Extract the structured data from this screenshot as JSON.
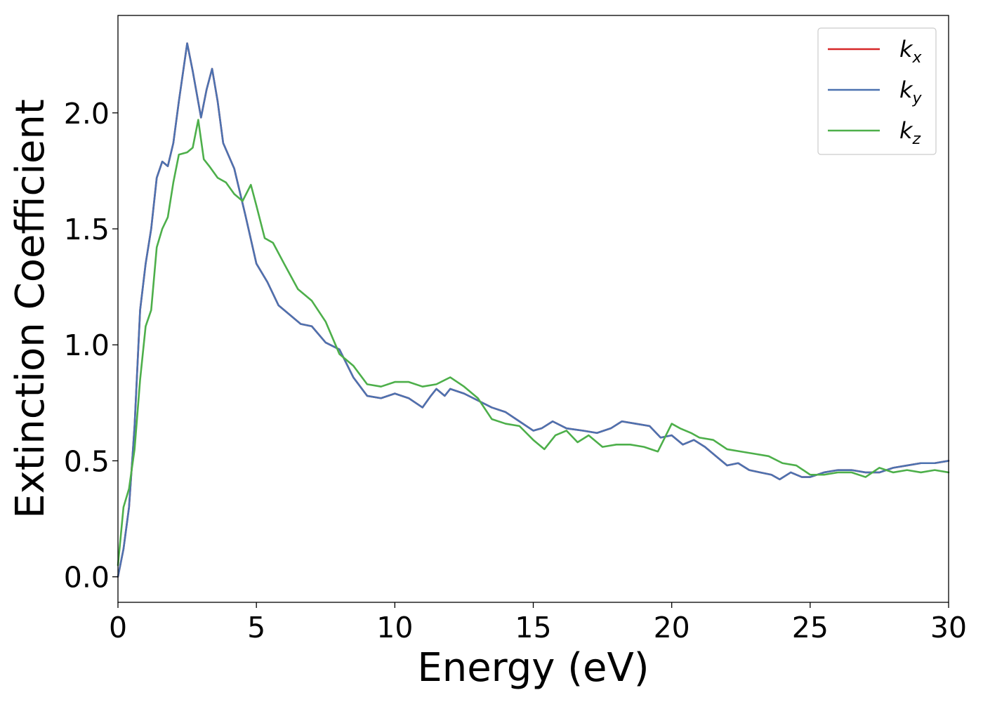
{
  "chart_data": {
    "type": "line",
    "xlabel": "Energy (eV)",
    "ylabel": "Extinction Coefficient",
    "xlim": [
      0,
      30
    ],
    "ylim": [
      -0.11,
      2.42
    ],
    "xticks": [
      "0",
      "5",
      "10",
      "15",
      "20",
      "25",
      "30"
    ],
    "yticks": [
      "0.0",
      "0.5",
      "1.0",
      "1.5",
      "2.0"
    ],
    "grid": false,
    "legend_position": "top-right",
    "series": [
      {
        "name": "kx",
        "symbol": "k",
        "subscript": "x",
        "color": "#d62728",
        "x": [
          0,
          0.2,
          0.4,
          0.6,
          0.8,
          1.0,
          1.2,
          1.4,
          1.6,
          1.8,
          2.0,
          2.2,
          2.5,
          2.7,
          3.0,
          3.2,
          3.4,
          3.6,
          3.8,
          4.2,
          4.6,
          5.0,
          5.4,
          5.8,
          6.2,
          6.6,
          7.0,
          7.5,
          8.0,
          8.5,
          9.0,
          9.5,
          10.0,
          10.5,
          11.0,
          11.3,
          11.5,
          11.8,
          12.0,
          12.5,
          13.0,
          13.5,
          14.0,
          14.5,
          15.0,
          15.3,
          15.7,
          16.2,
          16.8,
          17.3,
          17.8,
          18.2,
          18.7,
          19.2,
          19.6,
          20.0,
          20.4,
          20.8,
          21.2,
          21.6,
          22.0,
          22.4,
          22.8,
          23.2,
          23.6,
          23.9,
          24.3,
          24.7,
          25.0,
          25.5,
          26.0,
          26.5,
          27.0,
          27.5,
          28.0,
          28.5,
          29.0,
          29.5,
          30.0
        ],
        "y": [
          0.0,
          0.12,
          0.3,
          0.65,
          1.15,
          1.35,
          1.5,
          1.72,
          1.79,
          1.77,
          1.87,
          2.05,
          2.3,
          2.18,
          1.98,
          2.1,
          2.19,
          2.05,
          1.87,
          1.76,
          1.56,
          1.35,
          1.27,
          1.17,
          1.13,
          1.09,
          1.08,
          1.01,
          0.98,
          0.86,
          0.78,
          0.77,
          0.79,
          0.77,
          0.73,
          0.78,
          0.81,
          0.78,
          0.81,
          0.79,
          0.76,
          0.73,
          0.71,
          0.67,
          0.63,
          0.64,
          0.67,
          0.64,
          0.63,
          0.62,
          0.64,
          0.67,
          0.66,
          0.65,
          0.6,
          0.61,
          0.57,
          0.59,
          0.56,
          0.52,
          0.48,
          0.49,
          0.46,
          0.45,
          0.44,
          0.42,
          0.45,
          0.43,
          0.43,
          0.45,
          0.46,
          0.46,
          0.45,
          0.45,
          0.47,
          0.48,
          0.49,
          0.49,
          0.5
        ]
      },
      {
        "name": "ky",
        "symbol": "k",
        "subscript": "y",
        "color": "#4c72b0",
        "x": [
          0,
          0.2,
          0.4,
          0.6,
          0.8,
          1.0,
          1.2,
          1.4,
          1.6,
          1.8,
          2.0,
          2.2,
          2.5,
          2.7,
          3.0,
          3.2,
          3.4,
          3.6,
          3.8,
          4.2,
          4.6,
          5.0,
          5.4,
          5.8,
          6.2,
          6.6,
          7.0,
          7.5,
          8.0,
          8.5,
          9.0,
          9.5,
          10.0,
          10.5,
          11.0,
          11.3,
          11.5,
          11.8,
          12.0,
          12.5,
          13.0,
          13.5,
          14.0,
          14.5,
          15.0,
          15.3,
          15.7,
          16.2,
          16.8,
          17.3,
          17.8,
          18.2,
          18.7,
          19.2,
          19.6,
          20.0,
          20.4,
          20.8,
          21.2,
          21.6,
          22.0,
          22.4,
          22.8,
          23.2,
          23.6,
          23.9,
          24.3,
          24.7,
          25.0,
          25.5,
          26.0,
          26.5,
          27.0,
          27.5,
          28.0,
          28.5,
          29.0,
          29.5,
          30.0
        ],
        "y": [
          0.0,
          0.12,
          0.3,
          0.65,
          1.15,
          1.35,
          1.5,
          1.72,
          1.79,
          1.77,
          1.87,
          2.05,
          2.3,
          2.18,
          1.98,
          2.1,
          2.19,
          2.05,
          1.87,
          1.76,
          1.56,
          1.35,
          1.27,
          1.17,
          1.13,
          1.09,
          1.08,
          1.01,
          0.98,
          0.86,
          0.78,
          0.77,
          0.79,
          0.77,
          0.73,
          0.78,
          0.81,
          0.78,
          0.81,
          0.79,
          0.76,
          0.73,
          0.71,
          0.67,
          0.63,
          0.64,
          0.67,
          0.64,
          0.63,
          0.62,
          0.64,
          0.67,
          0.66,
          0.65,
          0.6,
          0.61,
          0.57,
          0.59,
          0.56,
          0.52,
          0.48,
          0.49,
          0.46,
          0.45,
          0.44,
          0.42,
          0.45,
          0.43,
          0.43,
          0.45,
          0.46,
          0.46,
          0.45,
          0.45,
          0.47,
          0.48,
          0.49,
          0.49,
          0.5
        ]
      },
      {
        "name": "kz",
        "symbol": "k",
        "subscript": "z",
        "color": "#4daf4a",
        "x": [
          0,
          0.2,
          0.4,
          0.6,
          0.8,
          1.0,
          1.2,
          1.4,
          1.6,
          1.8,
          2.0,
          2.2,
          2.5,
          2.7,
          2.9,
          3.1,
          3.3,
          3.6,
          3.9,
          4.2,
          4.5,
          4.8,
          5.0,
          5.3,
          5.6,
          6.0,
          6.5,
          7.0,
          7.5,
          8.0,
          8.5,
          9.0,
          9.5,
          10.0,
          10.5,
          11.0,
          11.5,
          12.0,
          12.5,
          13.0,
          13.5,
          14.0,
          14.5,
          15.0,
          15.4,
          15.8,
          16.2,
          16.6,
          17.0,
          17.5,
          18.0,
          18.5,
          19.0,
          19.5,
          20.0,
          20.3,
          20.7,
          21.0,
          21.5,
          22.0,
          22.5,
          23.0,
          23.5,
          24.0,
          24.5,
          25.0,
          25.5,
          26.0,
          26.5,
          27.0,
          27.5,
          28.0,
          28.5,
          29.0,
          29.5,
          30.0
        ],
        "y": [
          0.05,
          0.3,
          0.38,
          0.55,
          0.85,
          1.08,
          1.15,
          1.42,
          1.5,
          1.55,
          1.7,
          1.82,
          1.83,
          1.85,
          1.97,
          1.8,
          1.77,
          1.72,
          1.7,
          1.65,
          1.62,
          1.69,
          1.6,
          1.46,
          1.44,
          1.35,
          1.24,
          1.19,
          1.1,
          0.96,
          0.91,
          0.83,
          0.82,
          0.84,
          0.84,
          0.82,
          0.83,
          0.86,
          0.82,
          0.77,
          0.68,
          0.66,
          0.65,
          0.59,
          0.55,
          0.61,
          0.63,
          0.58,
          0.61,
          0.56,
          0.57,
          0.57,
          0.56,
          0.54,
          0.66,
          0.64,
          0.62,
          0.6,
          0.59,
          0.55,
          0.54,
          0.53,
          0.52,
          0.49,
          0.48,
          0.44,
          0.44,
          0.45,
          0.45,
          0.43,
          0.47,
          0.45,
          0.46,
          0.45,
          0.46,
          0.45
        ]
      }
    ]
  }
}
